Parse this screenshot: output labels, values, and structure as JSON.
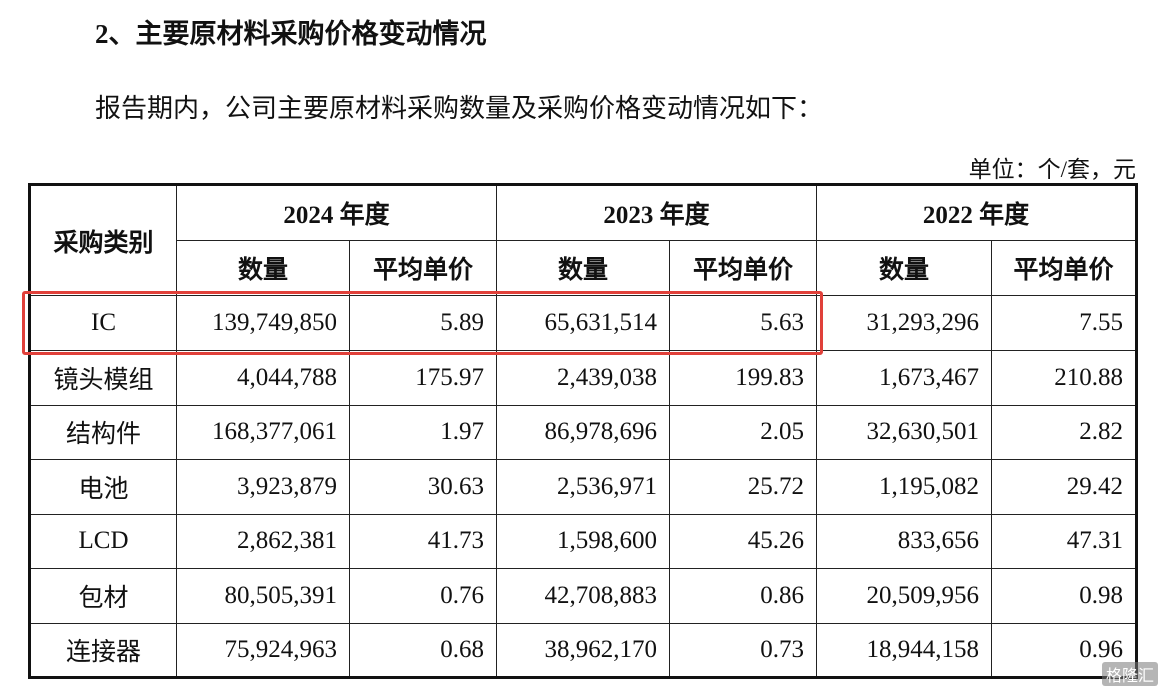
{
  "heading": "2、主要原材料采购价格变动情况",
  "intro": "报告期内，公司主要原材料采购数量及采购价格变动情况如下：",
  "unit": "单位：个/套，元",
  "table": {
    "corner": "采购类别",
    "years": [
      "2024 年度",
      "2023 年度",
      "2022 年度"
    ],
    "subheaders": [
      "数量",
      "平均单价",
      "数量",
      "平均单价",
      "数量",
      "平均单价"
    ],
    "rows": [
      [
        "IC",
        "139,749,850",
        "5.89",
        "65,631,514",
        "5.63",
        "31,293,296",
        "7.55"
      ],
      [
        "镜头模组",
        "4,044,788",
        "175.97",
        "2,439,038",
        "199.83",
        "1,673,467",
        "210.88"
      ],
      [
        "结构件",
        "168,377,061",
        "1.97",
        "86,978,696",
        "2.05",
        "32,630,501",
        "2.82"
      ],
      [
        "电池",
        "3,923,879",
        "30.63",
        "2,536,971",
        "25.72",
        "1,195,082",
        "29.42"
      ],
      [
        "LCD",
        "2,862,381",
        "41.73",
        "1,598,600",
        "45.26",
        "833,656",
        "47.31"
      ],
      [
        "包材",
        "80,505,391",
        "0.76",
        "42,708,883",
        "0.86",
        "20,509,956",
        "0.98"
      ],
      [
        "连接器",
        "75,924,963",
        "0.68",
        "38,962,170",
        "0.73",
        "18,944,158",
        "0.96"
      ]
    ]
  },
  "watermark": "格隆汇"
}
